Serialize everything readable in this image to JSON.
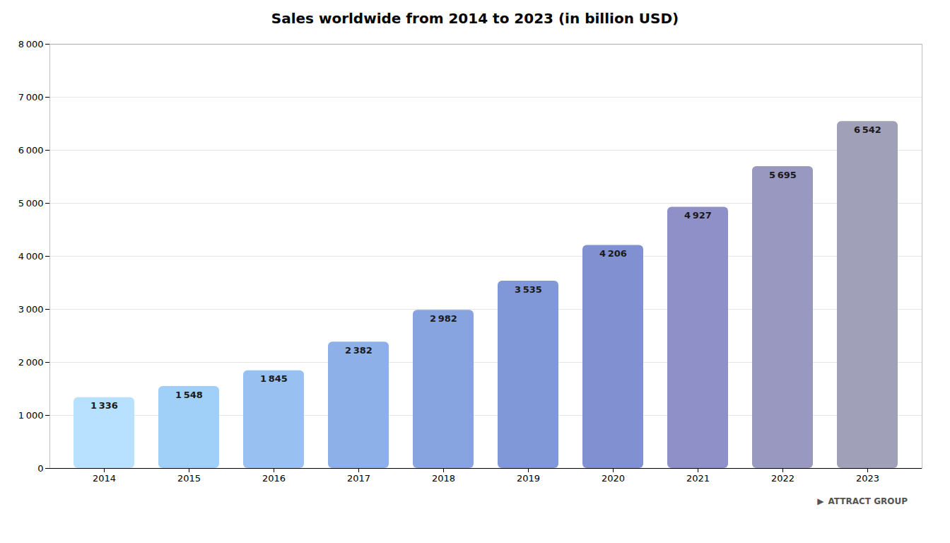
{
  "chart_data": {
    "type": "bar",
    "title": "Sales worldwide from 2014 to 2023 (in billion USD)",
    "categories": [
      "2014",
      "2015",
      "2016",
      "2017",
      "2018",
      "2019",
      "2020",
      "2021",
      "2022",
      "2023"
    ],
    "values": [
      1336,
      1548,
      1845,
      2382,
      2982,
      3535,
      4206,
      4927,
      5695,
      6542
    ],
    "value_labels": [
      "1 336",
      "1 548",
      "1 845",
      "2 382",
      "2 982",
      "3 535",
      "4 206",
      "4 927",
      "5 695",
      "6 542"
    ],
    "colors": [
      "#b8e0ff",
      "#a0d0f8",
      "#98c0f0",
      "#8eb0e8",
      "#88a4e0",
      "#8098d8",
      "#8090d0",
      "#9090c8",
      "#9898c0",
      "#a0a0b8"
    ],
    "ylim": [
      0,
      8000
    ],
    "yticks": [
      0,
      {
        "value": 1000,
        "label": "1 000"
      },
      {
        "value": 2000,
        "label": "2 000"
      },
      {
        "value": 3000,
        "label": "3 000"
      },
      {
        "value": 4000,
        "label": "4 000"
      },
      {
        "value": 5000,
        "label": "5 000"
      },
      {
        "value": 6000,
        "label": "6 000"
      },
      {
        "value": 7000,
        "label": "7 000"
      },
      {
        "value": 8000,
        "label": "8 000"
      }
    ],
    "grid": true,
    "data_labels": true,
    "annotations": [
      "▶",
      "ATTRACT GROUP"
    ]
  }
}
